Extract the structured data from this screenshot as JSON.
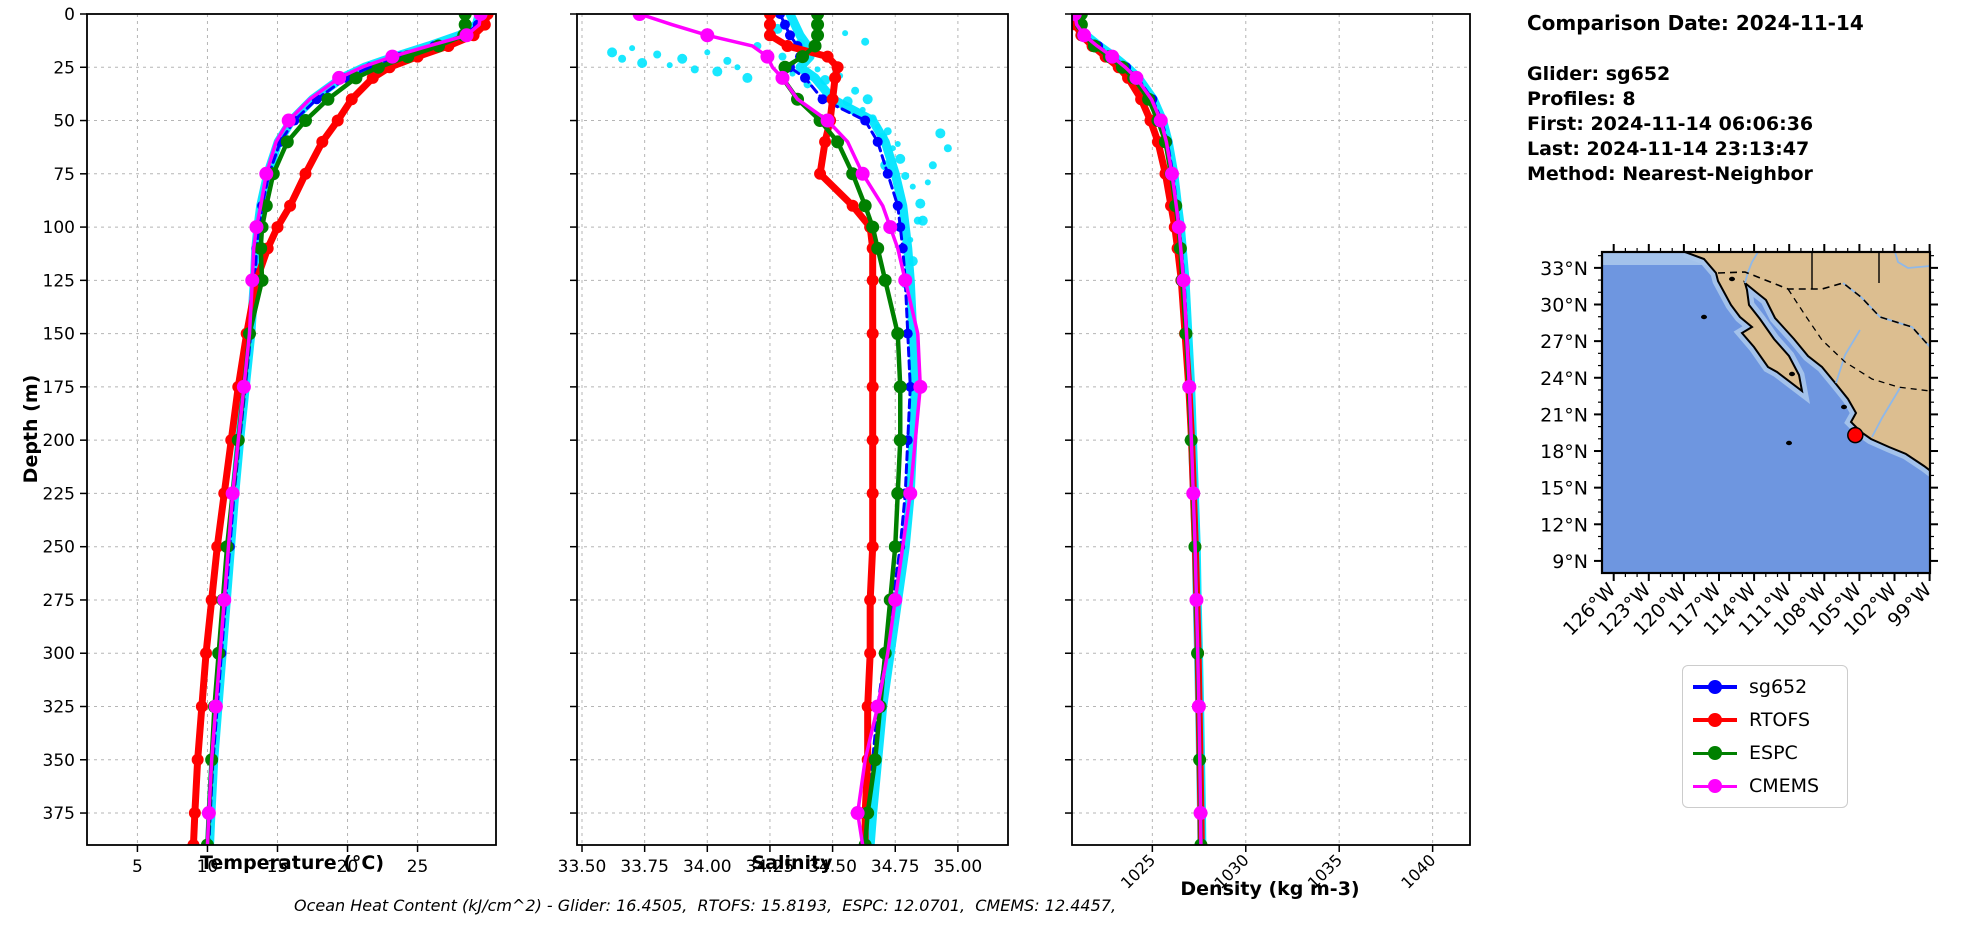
{
  "info_panel": {
    "comparison_date": "Comparison Date: 2024-11-14",
    "lines": [
      "Glider: sg652",
      "Profiles: 8",
      "First: 2024-11-14 06:06:36",
      "Last: 2024-11-14 23:13:47",
      "Method: Nearest-Neighbor"
    ]
  },
  "footer": "Ocean Heat Content (kJ/cm^2) - Glider: 16.4505,  RTOFS: 15.8193,  ESPC: 12.0701,  CMEMS: 12.4457,",
  "labels": {
    "ylabel": "Depth (m)"
  },
  "legend": {
    "items": [
      {
        "label": "sg652",
        "color": "#0000ff"
      },
      {
        "label": "RTOFS",
        "color": "#ff0000"
      },
      {
        "label": "ESPC",
        "color": "#008000"
      },
      {
        "label": "CMEMS",
        "color": "#ff00ff"
      }
    ]
  },
  "map": {
    "lat_ticks": {
      "values": [
        33,
        30,
        27,
        24,
        21,
        18,
        15,
        12,
        9
      ],
      "labels": [
        "33°N",
        "30°N",
        "27°N",
        "24°N",
        "21°N",
        "18°N",
        "15°N",
        "12°N",
        "9°N"
      ]
    },
    "lon_ticks": {
      "values": [
        126,
        123,
        120,
        117,
        114,
        111,
        108,
        105,
        102,
        99
      ],
      "labels": [
        "126°W",
        "123°W",
        "120°W",
        "117°W",
        "114°W",
        "111°W",
        "108°W",
        "105°W",
        "102°W",
        "99°W"
      ]
    },
    "extent": {
      "lon_west": 127,
      "lon_east": 99,
      "lat_north": 34.3,
      "lat_south": 8
    },
    "marker": {
      "lon": 105.35,
      "lat": 19.3,
      "color": "#ff0000"
    },
    "colors": {
      "ocean": "#6e96e0",
      "land": "#dcbe90",
      "shallow": "#a9c6ec",
      "coast": "#000000",
      "river": "#8fb8e8"
    }
  },
  "chart_data": [
    {
      "type": "line",
      "xlabel": "Temperature (°C)",
      "ylabel": "Depth (m)",
      "xlim": [
        1.4,
        30.6
      ],
      "ylim": [
        390,
        0
      ],
      "grid": true,
      "legend_position": "below-map",
      "xticks": {
        "values": [
          5,
          10,
          15,
          20,
          25
        ],
        "labels": [
          "5",
          "10",
          "15",
          "20",
          "25"
        ],
        "rotation": 0
      },
      "yticks": [
        0,
        25,
        50,
        75,
        100,
        125,
        150,
        175,
        200,
        225,
        250,
        275,
        300,
        325,
        350,
        375
      ],
      "depths": [
        0,
        5,
        10,
        15,
        20,
        25,
        30,
        40,
        50,
        60,
        75,
        90,
        100,
        110,
        125,
        150,
        175,
        200,
        225,
        250,
        275,
        300,
        325,
        350,
        375,
        390
      ],
      "raw": {
        "name": "glider-raw",
        "color": "#00e5ff",
        "width": 9,
        "values": [
          29.4,
          29.2,
          28.0,
          25.8,
          23.4,
          21.2,
          19.6,
          17.5,
          16.0,
          15.05,
          14.3,
          13.8,
          13.6,
          13.45,
          13.35,
          13.1,
          12.7,
          12.3,
          11.95,
          11.65,
          11.35,
          11.05,
          10.75,
          10.45,
          10.25,
          10.15
        ]
      },
      "series": [
        {
          "name": "sg652",
          "color": "#0000ff",
          "width": 3,
          "dash": "8 5",
          "marker_r": 5,
          "marker_every": 1,
          "values": [
            29.4,
            29.3,
            28.3,
            26.2,
            23.8,
            21.6,
            19.9,
            17.8,
            16.2,
            15.2,
            14.4,
            13.9,
            13.7,
            13.5,
            13.4,
            13.1,
            12.7,
            12.3,
            11.9,
            11.6,
            11.3,
            11.0,
            10.7,
            10.4,
            10.2,
            10.1
          ]
        },
        {
          "name": "RTOFS",
          "color": "#ff0000",
          "width": 7,
          "dash": "",
          "marker_r": 6,
          "marker_every": 1,
          "values": [
            30.0,
            29.8,
            29.0,
            27.2,
            25.0,
            23.0,
            21.8,
            20.3,
            19.3,
            18.2,
            17.0,
            15.9,
            15.0,
            14.3,
            13.5,
            12.8,
            12.2,
            11.7,
            11.2,
            10.7,
            10.3,
            9.9,
            9.6,
            9.3,
            9.1,
            9.0
          ]
        },
        {
          "name": "ESPC",
          "color": "#008000",
          "width": 4.5,
          "dash": "",
          "marker_r": 6.5,
          "marker_every": 1,
          "values": [
            28.4,
            28.4,
            28.3,
            26.5,
            24.3,
            22.2,
            20.6,
            18.6,
            17.0,
            15.7,
            14.7,
            14.2,
            13.9,
            13.8,
            13.9,
            13.0,
            12.6,
            12.2,
            11.8,
            11.4,
            11.1,
            10.8,
            10.5,
            10.3,
            10.1,
            10.0
          ]
        },
        {
          "name": "CMEMS",
          "color": "#ff00ff",
          "width": 3.5,
          "dash": "",
          "marker_r": 7,
          "marker_every": 2,
          "values": [
            29.5,
            29.4,
            28.5,
            25.8,
            23.2,
            21.0,
            19.4,
            17.3,
            15.8,
            14.9,
            14.2,
            13.8,
            13.5,
            13.3,
            13.2,
            13.0,
            12.6,
            12.2,
            11.8,
            11.5,
            11.2,
            10.9,
            10.6,
            10.3,
            10.1,
            10.0
          ]
        }
      ]
    },
    {
      "type": "line",
      "xlabel": "Salinity",
      "ylabel": "Depth (m)",
      "xlim": [
        33.48,
        35.2
      ],
      "ylim": [
        390,
        0
      ],
      "grid": true,
      "xticks": {
        "values": [
          33.5,
          33.75,
          34.0,
          34.25,
          34.5,
          34.75,
          35.0
        ],
        "labels": [
          "33.50",
          "33.75",
          "34.00",
          "34.25",
          "34.50",
          "34.75",
          "35.00"
        ],
        "rotation": 0
      },
      "yticks": [
        0,
        25,
        50,
        75,
        100,
        125,
        150,
        175,
        200,
        225,
        250,
        275,
        300,
        325,
        350,
        375
      ],
      "depths": [
        0,
        5,
        10,
        15,
        20,
        25,
        30,
        40,
        50,
        60,
        75,
        90,
        100,
        110,
        125,
        150,
        175,
        200,
        225,
        250,
        275,
        300,
        325,
        350,
        375,
        390
      ],
      "raw": {
        "name": "glider-raw",
        "color": "#00e5ff",
        "width": 9,
        "values": [
          34.33,
          34.35,
          34.37,
          34.4,
          34.41,
          34.37,
          34.43,
          34.5,
          34.66,
          34.71,
          34.75,
          34.78,
          34.79,
          34.8,
          34.81,
          34.82,
          34.83,
          34.82,
          34.81,
          34.79,
          34.76,
          34.73,
          34.7,
          34.68,
          34.66,
          34.65
        ]
      },
      "scatter": {
        "name": "glider-raw-scatter",
        "color": "#00e5ff",
        "r": 5,
        "points": [
          [
            33.62,
            18
          ],
          [
            33.66,
            21
          ],
          [
            33.7,
            16
          ],
          [
            33.74,
            23
          ],
          [
            33.8,
            19
          ],
          [
            33.85,
            24
          ],
          [
            33.9,
            21
          ],
          [
            33.95,
            26
          ],
          [
            34.0,
            18
          ],
          [
            34.04,
            27
          ],
          [
            34.08,
            22
          ],
          [
            34.12,
            25
          ],
          [
            34.16,
            30
          ],
          [
            34.2,
            15
          ],
          [
            34.24,
            11
          ],
          [
            34.28,
            7
          ],
          [
            34.3,
            20
          ],
          [
            34.34,
            28
          ],
          [
            34.37,
            14
          ],
          [
            34.4,
            33
          ],
          [
            34.44,
            26
          ],
          [
            34.47,
            31
          ],
          [
            34.5,
            37
          ],
          [
            34.53,
            29
          ],
          [
            34.56,
            41
          ],
          [
            34.59,
            36
          ],
          [
            34.62,
            45
          ],
          [
            34.64,
            40
          ],
          [
            34.66,
            49
          ],
          [
            34.68,
            53
          ],
          [
            34.7,
            58
          ],
          [
            34.72,
            55
          ],
          [
            34.74,
            63
          ],
          [
            34.77,
            68
          ],
          [
            34.79,
            76
          ],
          [
            34.82,
            81
          ],
          [
            34.85,
            89
          ],
          [
            34.84,
            97
          ],
          [
            34.81,
            106
          ],
          [
            34.82,
            116
          ],
          [
            34.79,
            127
          ],
          [
            34.76,
            61
          ],
          [
            34.71,
            71
          ],
          [
            34.9,
            71
          ],
          [
            34.88,
            79
          ],
          [
            34.86,
            97
          ],
          [
            34.63,
            13
          ],
          [
            34.55,
            9
          ],
          [
            34.93,
            56
          ],
          [
            34.96,
            63
          ]
        ]
      },
      "series": [
        {
          "name": "sg652",
          "color": "#0000ff",
          "width": 3,
          "dash": "8 5",
          "marker_r": 5,
          "marker_every": 1,
          "values": [
            34.29,
            34.31,
            34.33,
            34.36,
            34.37,
            34.33,
            34.39,
            34.46,
            34.63,
            34.68,
            34.72,
            34.76,
            34.77,
            34.78,
            34.79,
            34.8,
            34.81,
            34.8,
            34.79,
            34.77,
            34.74,
            34.71,
            34.68,
            34.66,
            34.64,
            34.63
          ]
        },
        {
          "name": "RTOFS",
          "color": "#ff0000",
          "width": 7,
          "dash": "",
          "marker_r": 6,
          "marker_every": 1,
          "values": [
            34.25,
            34.25,
            34.25,
            34.32,
            34.48,
            34.52,
            34.51,
            34.5,
            34.49,
            34.47,
            34.45,
            34.58,
            34.65,
            34.66,
            34.66,
            34.66,
            34.66,
            34.66,
            34.66,
            34.66,
            34.65,
            34.65,
            34.64,
            34.64,
            34.63,
            34.63
          ]
        },
        {
          "name": "ESPC",
          "color": "#008000",
          "width": 4.5,
          "dash": "",
          "marker_r": 6.5,
          "marker_every": 1,
          "values": [
            34.44,
            34.44,
            34.44,
            34.43,
            34.38,
            34.31,
            34.3,
            34.36,
            34.45,
            34.52,
            34.58,
            34.63,
            34.66,
            34.68,
            34.71,
            34.76,
            34.77,
            34.77,
            34.76,
            34.75,
            34.73,
            34.71,
            34.69,
            34.67,
            34.64,
            34.63
          ]
        },
        {
          "name": "CMEMS",
          "color": "#ff00ff",
          "width": 3.5,
          "dash": "",
          "marker_r": 7,
          "marker_every": 2,
          "values": [
            33.73,
            33.86,
            34.0,
            34.18,
            34.24,
            34.26,
            34.3,
            34.36,
            34.48,
            34.56,
            34.62,
            34.7,
            34.73,
            34.76,
            34.79,
            34.84,
            34.85,
            34.83,
            34.81,
            34.78,
            34.75,
            34.72,
            34.68,
            34.63,
            34.6,
            34.62
          ]
        }
      ]
    },
    {
      "type": "line",
      "xlabel": "Density (kg m-3)",
      "ylabel": "Depth (m)",
      "xlim": [
        1020.7,
        1042.0
      ],
      "ylim": [
        390,
        0
      ],
      "grid": true,
      "xticks": {
        "values": [
          1025,
          1030,
          1035,
          1040
        ],
        "labels": [
          "1025",
          "1030",
          "1035",
          "1040"
        ],
        "rotation": 45
      },
      "yticks": [
        0,
        25,
        50,
        75,
        100,
        125,
        150,
        175,
        200,
        225,
        250,
        275,
        300,
        325,
        350,
        375
      ],
      "depths": [
        0,
        5,
        10,
        15,
        20,
        25,
        30,
        40,
        50,
        60,
        75,
        90,
        100,
        110,
        125,
        150,
        175,
        200,
        225,
        250,
        275,
        300,
        325,
        350,
        375,
        390
      ],
      "raw": {
        "name": "glider-raw",
        "color": "#00e5ff",
        "width": 9,
        "values": [
          1020.95,
          1021.05,
          1021.45,
          1022.15,
          1022.95,
          1023.65,
          1024.25,
          1025.05,
          1025.55,
          1025.85,
          1026.15,
          1026.35,
          1026.5,
          1026.6,
          1026.75,
          1026.9,
          1027.05,
          1027.15,
          1027.25,
          1027.35,
          1027.4,
          1027.47,
          1027.53,
          1027.58,
          1027.63,
          1027.65
        ]
      },
      "series": [
        {
          "name": "sg652",
          "color": "#0000ff",
          "width": 3,
          "dash": "8 5",
          "marker_r": 5,
          "marker_every": 1,
          "values": [
            1020.9,
            1021.0,
            1021.4,
            1022.1,
            1022.9,
            1023.6,
            1024.2,
            1025.0,
            1025.5,
            1025.8,
            1026.1,
            1026.3,
            1026.45,
            1026.55,
            1026.7,
            1026.85,
            1027.0,
            1027.1,
            1027.2,
            1027.3,
            1027.35,
            1027.42,
            1027.48,
            1027.53,
            1027.58,
            1027.6
          ]
        },
        {
          "name": "RTOFS",
          "color": "#ff0000",
          "width": 7,
          "dash": "",
          "marker_r": 6,
          "marker_every": 1,
          "values": [
            1020.8,
            1020.9,
            1021.2,
            1021.8,
            1022.5,
            1023.2,
            1023.7,
            1024.4,
            1024.9,
            1025.3,
            1025.7,
            1026.0,
            1026.2,
            1026.35,
            1026.55,
            1026.75,
            1026.95,
            1027.1,
            1027.2,
            1027.3,
            1027.38,
            1027.45,
            1027.5,
            1027.55,
            1027.6,
            1027.62
          ]
        },
        {
          "name": "ESPC",
          "color": "#008000",
          "width": 4.5,
          "dash": "",
          "marker_r": 6.5,
          "marker_every": 1,
          "values": [
            1021.2,
            1021.2,
            1021.3,
            1021.9,
            1022.7,
            1023.4,
            1024.0,
            1024.8,
            1025.3,
            1025.7,
            1026.0,
            1026.25,
            1026.4,
            1026.5,
            1026.6,
            1026.8,
            1026.95,
            1027.08,
            1027.18,
            1027.28,
            1027.35,
            1027.42,
            1027.48,
            1027.53,
            1027.58,
            1027.6
          ]
        },
        {
          "name": "CMEMS",
          "color": "#ff00ff",
          "width": 3.5,
          "dash": "",
          "marker_r": 7,
          "marker_every": 2,
          "values": [
            1020.85,
            1020.95,
            1021.35,
            1022.05,
            1022.85,
            1023.55,
            1024.15,
            1024.95,
            1025.45,
            1025.75,
            1026.05,
            1026.28,
            1026.42,
            1026.52,
            1026.67,
            1026.83,
            1026.98,
            1027.09,
            1027.19,
            1027.29,
            1027.36,
            1027.43,
            1027.49,
            1027.54,
            1027.58,
            1027.6
          ]
        }
      ]
    }
  ]
}
